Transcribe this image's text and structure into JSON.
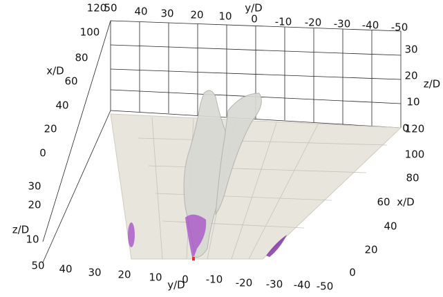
{
  "top_y_axis": {
    "label": "y/D",
    "ticks": [
      "50",
      "40",
      "30",
      "20",
      "10",
      "0",
      "-10",
      "-20",
      "-30",
      "-40",
      "-50"
    ]
  },
  "left_x_axis": {
    "label": "x/D",
    "ticks": [
      "120",
      "100",
      "80",
      "60",
      "40",
      "20",
      "0"
    ]
  },
  "left_z_axis": {
    "label": "z/D",
    "ticks": [
      "30",
      "20",
      "10",
      "50"
    ]
  },
  "bottom_y_axis": {
    "label": "y/D",
    "ticks": [
      "40",
      "30",
      "20",
      "10",
      "0",
      "-10",
      "-20",
      "-30",
      "-40",
      "-50"
    ]
  },
  "right_x_axis": {
    "label": "x/D",
    "ticks": [
      "120",
      "100",
      "80",
      "60",
      "40",
      "20",
      "0"
    ]
  },
  "right_z_axis": {
    "label": "z/D",
    "ticks": [
      "30",
      "20",
      "10",
      "0"
    ]
  }
}
